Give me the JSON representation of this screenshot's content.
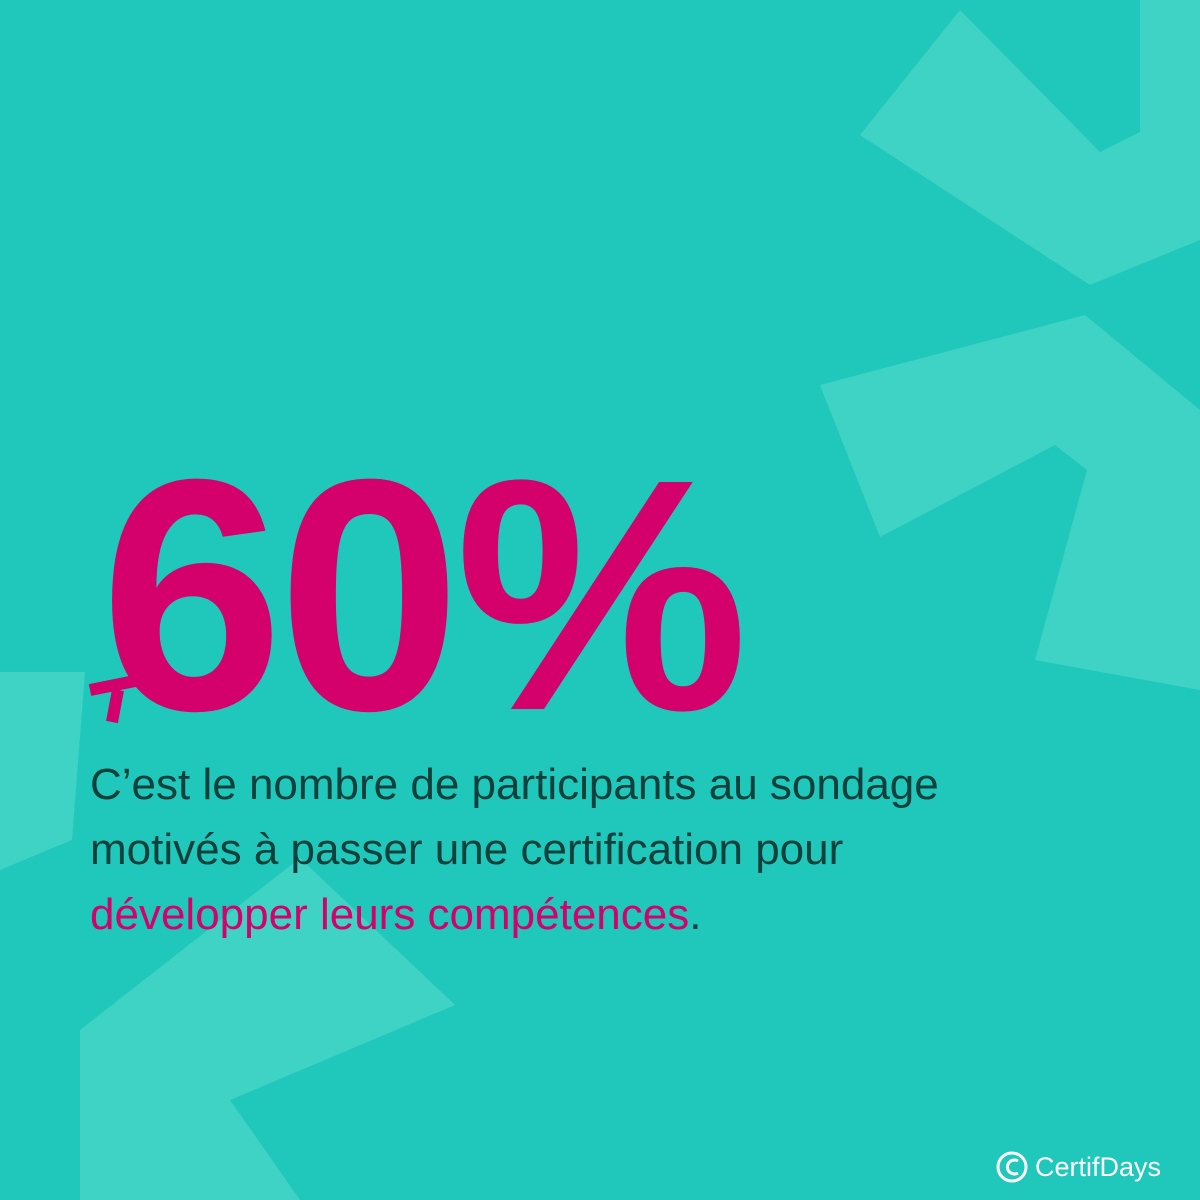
{
  "stat": "60%",
  "description": {
    "lines": [
      "C’est le nombre de participants au sondage",
      "motivés à passer une certification pour"
    ],
    "highlight": "développer leurs compétences",
    "end": "."
  },
  "brand": "CertifDays"
}
